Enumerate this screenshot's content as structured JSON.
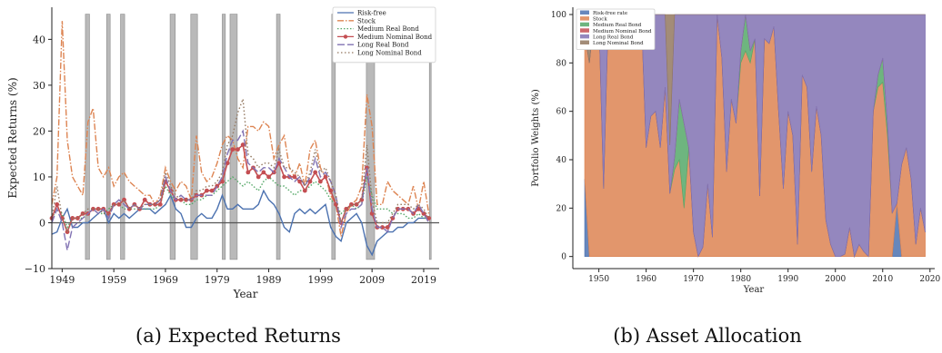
{
  "colors": {
    "riskfree": "#4c72b0",
    "stock": "#dd8452",
    "medium_real": "#55a868",
    "medium_nominal": "#c44e52",
    "long_real": "#8172b3",
    "long_nominal": "#937860",
    "recession": "#b9b9b9"
  },
  "chart_data": [
    {
      "type": "line",
      "caption": "(a) Expected Returns",
      "xlabel": "Year",
      "ylabel": "Expected Returns (%)",
      "xlim": [
        1947,
        2022
      ],
      "ylim": [
        -10,
        47
      ],
      "xticks": [
        1949,
        1959,
        1969,
        1979,
        1989,
        1999,
        2009,
        2019
      ],
      "yticks": [
        -10,
        0,
        10,
        20,
        30,
        40
      ],
      "recessions": [
        [
          1953.5,
          1954.3
        ],
        [
          1957.6,
          1958.3
        ],
        [
          1960.3,
          1961.1
        ],
        [
          1969.9,
          1970.9
        ],
        [
          1973.9,
          1975.2
        ],
        [
          1980.0,
          1980.6
        ],
        [
          1981.5,
          1982.9
        ],
        [
          1990.5,
          1991.2
        ],
        [
          2001.2,
          2001.9
        ],
        [
          2007.9,
          2009.5
        ],
        [
          2020.1,
          2020.4
        ]
      ],
      "x": [
        1947,
        1948,
        1949,
        1950,
        1951,
        1952,
        1953,
        1954,
        1955,
        1956,
        1957,
        1958,
        1959,
        1960,
        1961,
        1962,
        1963,
        1964,
        1965,
        1966,
        1967,
        1968,
        1969,
        1970,
        1971,
        1972,
        1973,
        1974,
        1975,
        1976,
        1977,
        1978,
        1979,
        1980,
        1981,
        1982,
        1983,
        1984,
        1985,
        1986,
        1987,
        1988,
        1989,
        1990,
        1991,
        1992,
        1993,
        1994,
        1995,
        1996,
        1997,
        1998,
        1999,
        2000,
        2001,
        2002,
        2003,
        2004,
        2005,
        2006,
        2007,
        2008,
        2009,
        2010,
        2011,
        2012,
        2013,
        2014,
        2015,
        2016,
        2017,
        2018,
        2019,
        2020
      ],
      "legend": [
        "Risk-free",
        "Stock",
        "Medium Real Bond",
        "Medium Nominal Bond",
        "Long Real Bond",
        "Long Nominal Bond"
      ],
      "series": [
        {
          "name": "Risk-free",
          "key": "riskfree",
          "values": [
            -2.5,
            -2,
            1,
            3,
            -1,
            -1,
            0,
            0,
            1,
            2,
            3,
            0,
            2,
            1,
            2,
            1,
            2,
            3,
            3,
            3,
            2,
            3,
            4,
            6,
            3,
            2,
            -1,
            -1,
            1,
            2,
            1,
            1,
            3,
            6,
            3,
            3,
            4,
            3,
            3,
            3,
            4,
            7,
            5,
            4,
            2,
            -1,
            -2,
            2,
            3,
            2,
            3,
            2,
            3,
            4,
            -1,
            -3,
            -4,
            0,
            1,
            2,
            0,
            -5,
            -7,
            -4,
            -3,
            -2,
            -2,
            -1,
            -1,
            0,
            0,
            1,
            1,
            1
          ]
        },
        {
          "name": "Stock",
          "key": "stock",
          "values": [
            4,
            10,
            44,
            18,
            10,
            8,
            6,
            22,
            25,
            12,
            10,
            12,
            8,
            10,
            11,
            9,
            8,
            7,
            6,
            6,
            4,
            6,
            12,
            9,
            7,
            9,
            8,
            5,
            19,
            11,
            9,
            10,
            13,
            17,
            19,
            18,
            14,
            12,
            21,
            21,
            20,
            22,
            21,
            14,
            17,
            19,
            12,
            10,
            13,
            8,
            16,
            18,
            12,
            10,
            6,
            4,
            -3,
            2,
            4,
            5,
            8,
            28,
            21,
            4,
            4,
            9,
            7,
            6,
            5,
            4,
            8,
            3,
            9,
            2
          ]
        },
        {
          "name": "Medium Real Bond",
          "key": "medium_real",
          "values": [
            1,
            3,
            2,
            -1,
            1,
            1,
            1,
            2,
            3,
            2,
            2,
            3,
            4,
            4,
            3,
            3,
            3,
            3,
            3,
            3,
            3,
            4,
            8,
            6,
            5,
            5,
            4,
            4,
            5,
            5,
            6,
            6,
            7,
            8,
            9,
            10,
            9,
            8,
            9,
            8,
            7,
            9,
            10,
            9,
            8,
            8,
            7,
            6,
            7,
            7,
            8,
            9,
            8,
            7,
            5,
            4,
            2,
            3,
            4,
            3,
            4,
            10,
            6,
            3,
            3,
            3,
            2,
            2,
            2,
            1,
            1,
            2,
            1,
            1
          ]
        },
        {
          "name": "Medium Nominal Bond",
          "key": "medium_nominal",
          "values": [
            1,
            4,
            1,
            -2,
            1,
            1,
            2,
            2,
            3,
            3,
            3,
            2,
            4,
            4,
            5,
            3,
            4,
            3,
            5,
            4,
            4,
            4,
            9,
            7,
            5,
            5,
            5,
            5,
            6,
            6,
            7,
            7,
            8,
            9,
            13,
            16,
            16,
            17,
            11,
            12,
            10,
            11,
            10,
            11,
            13,
            10,
            10,
            10,
            9,
            7,
            9,
            11,
            9,
            10,
            7,
            4,
            0,
            3,
            4,
            4,
            5,
            12,
            2,
            -1,
            -1,
            -1,
            1,
            3,
            3,
            3,
            2,
            3,
            2,
            1
          ]
        },
        {
          "name": "Long Real Bond",
          "key": "long_real",
          "values": [
            0,
            3,
            0,
            -6,
            -1,
            0,
            1,
            2,
            3,
            2,
            3,
            1,
            4,
            5,
            4,
            3,
            4,
            3,
            4,
            4,
            4,
            5,
            10,
            7,
            5,
            6,
            5,
            5,
            6,
            6,
            6,
            6,
            8,
            10,
            15,
            18,
            18,
            20,
            13,
            12,
            11,
            12,
            12,
            11,
            14,
            12,
            10,
            9,
            10,
            8,
            10,
            14,
            10,
            11,
            9,
            6,
            -1,
            2,
            3,
            3,
            4,
            12,
            3,
            -1,
            -1,
            -2,
            1,
            3,
            3,
            3,
            2,
            4,
            2,
            0
          ]
        },
        {
          "name": "Long Nominal Bond",
          "key": "long_nominal",
          "values": [
            1,
            8,
            1,
            -2,
            1,
            1,
            2,
            3,
            3,
            3,
            2,
            2,
            4,
            4,
            5,
            3,
            4,
            3,
            4,
            4,
            4,
            5,
            11,
            8,
            6,
            5,
            5,
            5,
            7,
            7,
            8,
            8,
            9,
            11,
            17,
            19,
            24,
            27,
            15,
            14,
            12,
            13,
            13,
            12,
            16,
            12,
            12,
            11,
            10,
            8,
            11,
            16,
            11,
            12,
            9,
            6,
            0,
            3,
            4,
            4,
            5,
            17,
            5,
            0,
            0,
            0,
            2,
            4,
            4,
            4,
            3,
            4,
            3,
            1
          ]
        }
      ]
    },
    {
      "type": "area",
      "caption": "(b) Asset Allocation",
      "xlabel": "Year",
      "ylabel": "Portfolio Weights (%)",
      "xlim": [
        1944.5,
        2021
      ],
      "ylim": [
        -5,
        103
      ],
      "xticks": [
        1950,
        1960,
        1970,
        1980,
        1990,
        2000,
        2010,
        2020
      ],
      "yticks": [
        0,
        20,
        40,
        60,
        80,
        100
      ],
      "legend": [
        "Risk-free rate",
        "Stock",
        "Medium Real Bond",
        "Medium Nominal Bond",
        "Long Real Bond",
        "Long Nominal Bond"
      ],
      "x": [
        1947,
        1948,
        1949,
        1950,
        1951,
        1952,
        1953,
        1954,
        1955,
        1956,
        1957,
        1958,
        1959,
        1960,
        1961,
        1962,
        1963,
        1964,
        1965,
        1966,
        1967,
        1968,
        1969,
        1970,
        1971,
        1972,
        1973,
        1974,
        1975,
        1976,
        1977,
        1978,
        1979,
        1980,
        1981,
        1982,
        1983,
        1984,
        1985,
        1986,
        1987,
        1988,
        1989,
        1990,
        1991,
        1992,
        1993,
        1994,
        1995,
        1996,
        1997,
        1998,
        1999,
        2000,
        2001,
        2002,
        2003,
        2004,
        2005,
        2006,
        2007,
        2008,
        2009,
        2010,
        2011,
        2012,
        2013,
        2014,
        2015,
        2016,
        2017,
        2018,
        2019
      ],
      "series": [
        {
          "name": "Risk-free rate",
          "key": "riskfree",
          "values": [
            32,
            0,
            0,
            0,
            0,
            0,
            0,
            0,
            0,
            0,
            0,
            0,
            0,
            0,
            0,
            0,
            0,
            0,
            0,
            0,
            0,
            0,
            0,
            0,
            0,
            0,
            0,
            0,
            0,
            0,
            0,
            0,
            0,
            0,
            0,
            0,
            0,
            0,
            0,
            0,
            0,
            0,
            0,
            0,
            0,
            0,
            0,
            0,
            0,
            0,
            0,
            0,
            0,
            0,
            0,
            0,
            0,
            0,
            0,
            0,
            0,
            0,
            0,
            0,
            0,
            0,
            22,
            0,
            0,
            0,
            0,
            0,
            0
          ]
        },
        {
          "name": "Stock",
          "key": "stock",
          "values": [
            60,
            80,
            100,
            100,
            28,
            100,
            100,
            99,
            100,
            100,
            94,
            86,
            100,
            45,
            58,
            60,
            45,
            70,
            26,
            36,
            40,
            20,
            45,
            10,
            0,
            4,
            30,
            8,
            100,
            82,
            35,
            65,
            55,
            80,
            85,
            80,
            90,
            25,
            90,
            88,
            95,
            60,
            28,
            60,
            50,
            5,
            75,
            70,
            35,
            62,
            50,
            15,
            5,
            0,
            0,
            1,
            12,
            0,
            5,
            2,
            0,
            60,
            70,
            72,
            50,
            18,
            0,
            38,
            45,
            32,
            5,
            20,
            10
          ]
        },
        {
          "name": "Medium Real Bond",
          "key": "medium_real",
          "values": [
            0,
            0,
            0,
            0,
            0,
            0,
            0,
            0,
            0,
            0,
            0,
            0,
            0,
            0,
            0,
            0,
            0,
            0,
            0,
            5,
            25,
            35,
            0,
            0,
            0,
            0,
            0,
            0,
            0,
            0,
            0,
            0,
            0,
            5,
            15,
            5,
            0,
            0,
            0,
            0,
            0,
            0,
            0,
            0,
            0,
            0,
            0,
            0,
            0,
            0,
            0,
            0,
            0,
            0,
            0,
            0,
            0,
            0,
            0,
            0,
            0,
            0,
            5,
            10,
            5,
            0,
            0,
            0,
            0,
            0,
            0,
            0,
            0
          ]
        },
        {
          "name": "Medium Nominal Bond",
          "key": "medium_nominal",
          "values": [
            0,
            0,
            0,
            0,
            0,
            0,
            0,
            0,
            0,
            0,
            0,
            0,
            0,
            0,
            0,
            0,
            0,
            0,
            0,
            0,
            0,
            0,
            0,
            0,
            0,
            0,
            0,
            0,
            0,
            0,
            0,
            0,
            0,
            0,
            0,
            0,
            0,
            0,
            0,
            0,
            0,
            0,
            0,
            0,
            0,
            0,
            0,
            0,
            0,
            0,
            0,
            0,
            0,
            0,
            0,
            0,
            0,
            0,
            0,
            0,
            0,
            0,
            0,
            0,
            0,
            0,
            0,
            0,
            0,
            0,
            0,
            0,
            0
          ]
        },
        {
          "name": "Long Real Bond",
          "key": "long_real",
          "values": [
            0,
            0,
            0,
            0,
            72,
            0,
            0,
            1,
            0,
            0,
            6,
            14,
            0,
            55,
            42,
            40,
            55,
            30,
            20,
            59,
            35,
            45,
            55,
            90,
            100,
            96,
            70,
            92,
            0,
            18,
            65,
            35,
            45,
            15,
            0,
            15,
            10,
            75,
            10,
            12,
            5,
            40,
            72,
            40,
            50,
            95,
            25,
            30,
            65,
            38,
            50,
            85,
            95,
            100,
            100,
            99,
            88,
            100,
            95,
            98,
            100,
            40,
            25,
            18,
            45,
            82,
            78,
            62,
            55,
            68,
            95,
            80,
            90
          ]
        },
        {
          "name": "Long Nominal Bond",
          "key": "long_nominal",
          "values": [
            8,
            20,
            0,
            0,
            0,
            0,
            0,
            0,
            0,
            0,
            0,
            0,
            0,
            0,
            0,
            0,
            0,
            0,
            54,
            0,
            0,
            0,
            0,
            0,
            0,
            0,
            0,
            0,
            0,
            0,
            0,
            0,
            0,
            0,
            0,
            0,
            0,
            0,
            0,
            0,
            0,
            0,
            0,
            0,
            0,
            0,
            0,
            0,
            0,
            0,
            0,
            0,
            0,
            0,
            0,
            0,
            0,
            0,
            0,
            0,
            0,
            0,
            0,
            0,
            0,
            0,
            0,
            0,
            0,
            0,
            0,
            0,
            0
          ]
        }
      ]
    }
  ]
}
